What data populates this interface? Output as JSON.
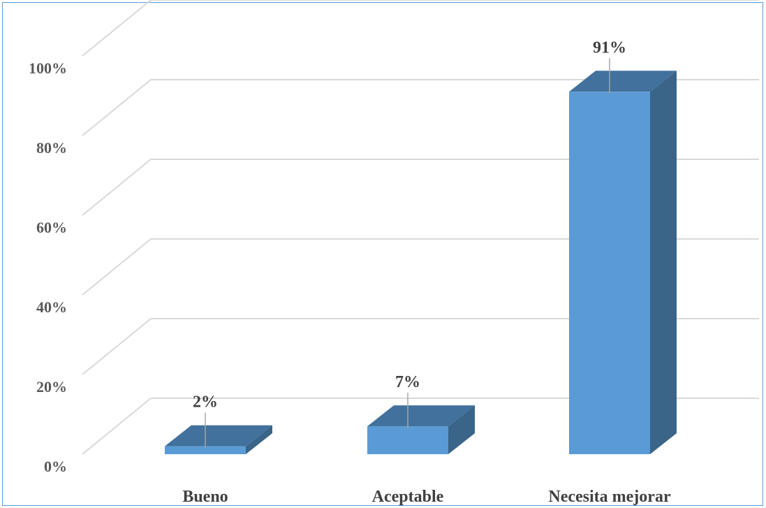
{
  "chart_data": {
    "type": "bar",
    "categories": [
      "Bueno",
      "Aceptable",
      "Necesita mejorar"
    ],
    "values": [
      2,
      7,
      91
    ],
    "data_labels": [
      "2%",
      "7%",
      "91%"
    ],
    "yticks": [
      "0%",
      "20%",
      "40%",
      "60%",
      "80%",
      "100%"
    ],
    "ylim": [
      0,
      100
    ],
    "three_d": true,
    "grid": true,
    "legend": "none",
    "colors": {
      "front": "#5b9bd5",
      "top": "#41719c",
      "side": "#3a6488",
      "grid": "#d9d9d9",
      "border": "#5b9bd5"
    }
  }
}
